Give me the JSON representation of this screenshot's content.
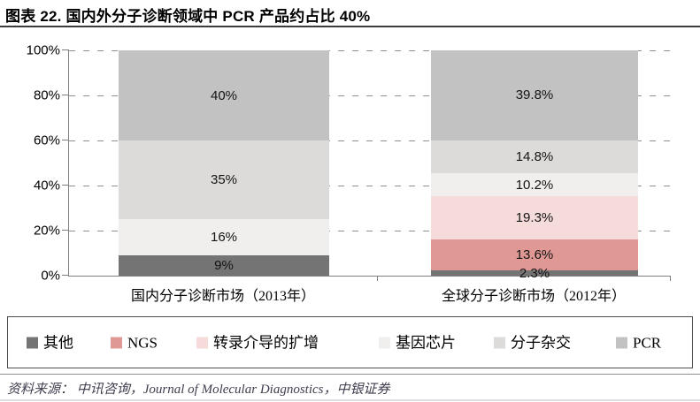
{
  "title": "图表 22. 国内外分子诊断领域中 PCR 产品约占比 40%",
  "source_note": "资料来源： 中讯咨询，Journal of Molecular Diagnostics，中银证券",
  "chart_data": {
    "type": "bar",
    "stacked": true,
    "percent_stacked": true,
    "title": "国内外分子诊断领域中 PCR 产品约占比 40%",
    "categories": [
      "国内分子诊断市场（2013年）",
      "全球分子诊断市场（2012年）"
    ],
    "series": [
      {
        "id": "other",
        "name": "其他",
        "color": "#757474",
        "values": [
          9,
          2.3
        ]
      },
      {
        "id": "ngs",
        "name": "NGS",
        "color": "#e09895",
        "values": [
          0,
          13.6
        ]
      },
      {
        "id": "tma",
        "name": "转录介导的扩增",
        "color": "#f5dbd9",
        "values": [
          0,
          19.3
        ]
      },
      {
        "id": "gene-chip",
        "name": "基因芯片",
        "color": "#f0efee",
        "values": [
          16,
          10.2
        ]
      },
      {
        "id": "hybridization",
        "name": "分子杂交",
        "color": "#dcdbda",
        "values": [
          35,
          14.8
        ]
      },
      {
        "id": "pcr",
        "name": "PCR",
        "color": "#c3c2c3",
        "values": [
          40,
          39.8
        ]
      }
    ],
    "y_ticks": [
      {
        "pct": 0,
        "label": "0%"
      },
      {
        "pct": 20,
        "label": "20%"
      },
      {
        "pct": 40,
        "label": "40%"
      },
      {
        "pct": 60,
        "label": "60%"
      },
      {
        "pct": 80,
        "label": "80%"
      },
      {
        "pct": 100,
        "label": "100%"
      }
    ],
    "ylim": [
      0,
      100
    ],
    "grid": "horizontal-dashed",
    "legend_position": "bottom-box"
  }
}
